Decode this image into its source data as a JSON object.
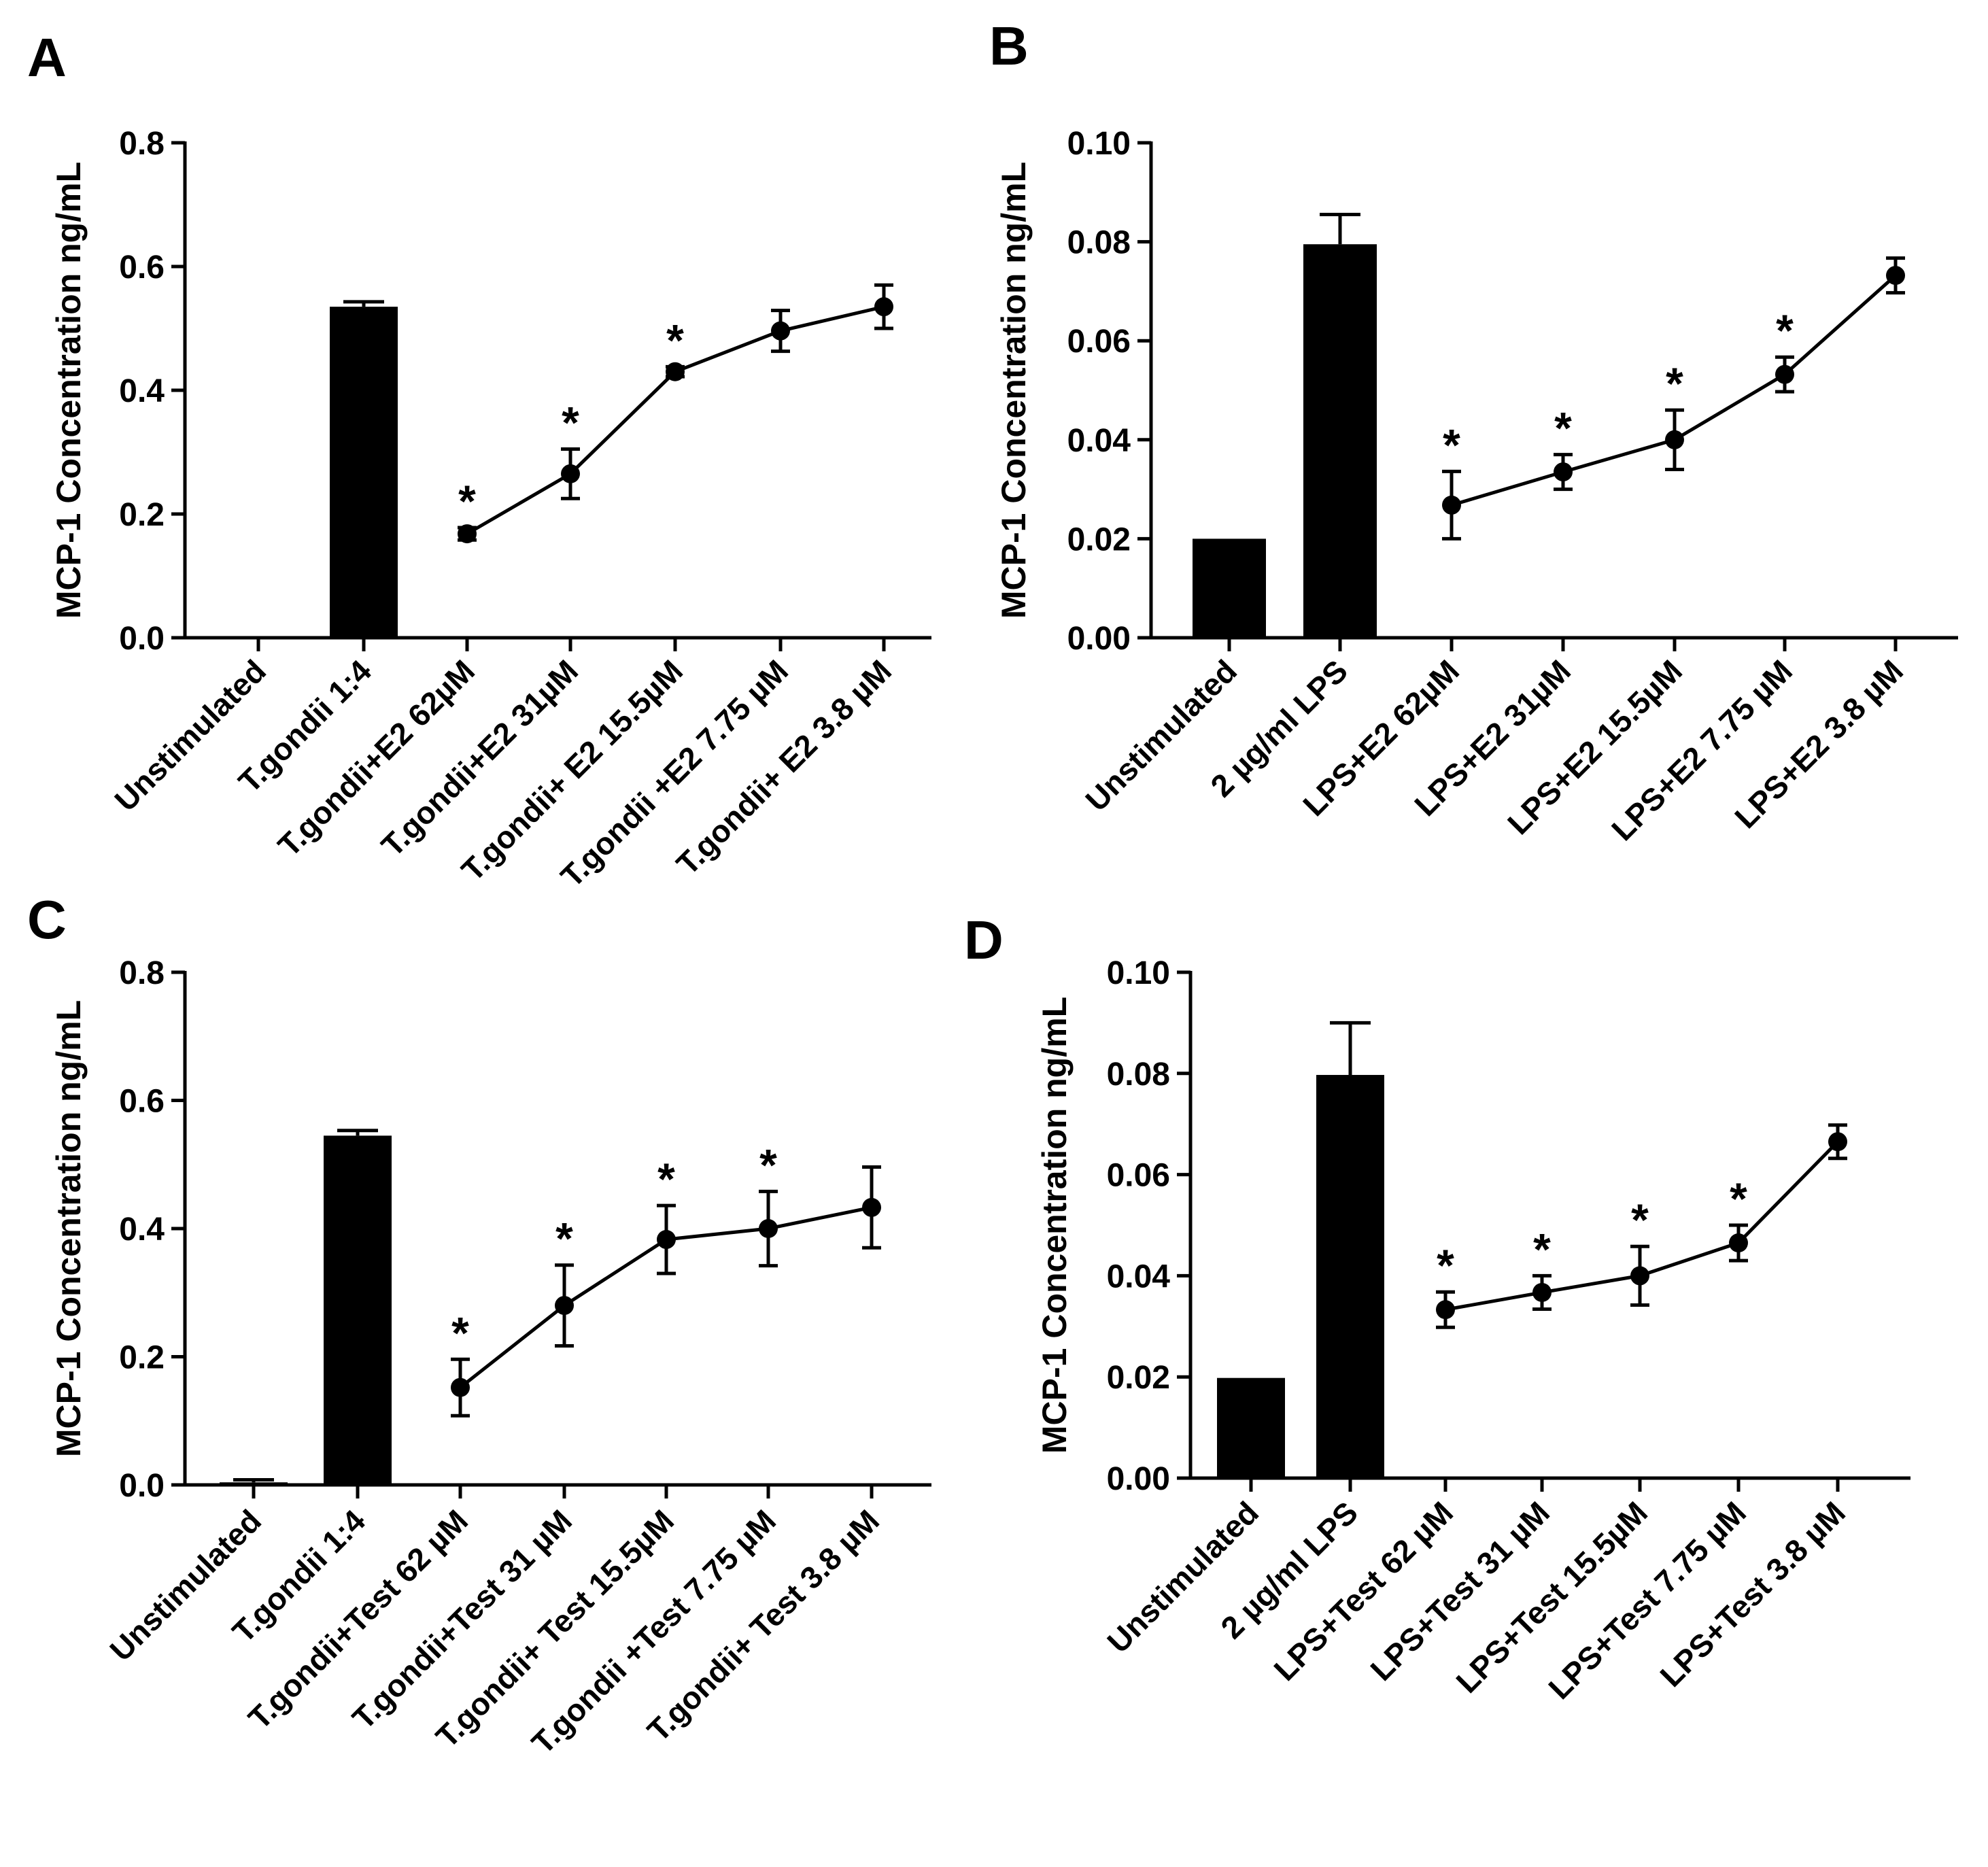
{
  "chart_data": [
    {
      "panel": "A",
      "type": "bar+line",
      "ylabel": "MCP-1 Concentration ng/mL",
      "ylim": [
        0,
        0.8
      ],
      "yticks": [
        "0.0",
        "0.2",
        "0.4",
        "0.6",
        "0.8"
      ],
      "categories": [
        "Unstimulated",
        "T.gondii 1:4",
        "T.gondii+E2 62µM",
        "T.gondii+E2 31µM",
        "T.gondii+ E2 15.5µM",
        "T.gondii +E2 7.75 µM",
        "T.gondii+ E2 3.8 µM"
      ],
      "bars": [
        {
          "index": 0,
          "value": 0,
          "err": 0
        },
        {
          "index": 1,
          "value": 0.535,
          "err": 0.008
        }
      ],
      "line": [
        {
          "index": 2,
          "value": 0.168,
          "err": 0.01,
          "sig": "*"
        },
        {
          "index": 3,
          "value": 0.265,
          "err": 0.04,
          "sig": "*"
        },
        {
          "index": 4,
          "value": 0.43,
          "err": 0.008,
          "sig": "*"
        },
        {
          "index": 5,
          "value": 0.496,
          "err": 0.033,
          "sig": ""
        },
        {
          "index": 6,
          "value": 0.535,
          "err": 0.035,
          "sig": ""
        }
      ]
    },
    {
      "panel": "B",
      "type": "bar+line",
      "ylabel": "MCP-1 Concentration ng/mL",
      "ylim": [
        0,
        0.1
      ],
      "yticks": [
        "0.00",
        "0.02",
        "0.04",
        "0.06",
        "0.08",
        "0.10"
      ],
      "categories": [
        "Unstimulated",
        "2 µg/ml LPS",
        "LPS+E2 62µM",
        "LPS+E2 31µM",
        "LPS+E2 15.5µM",
        "LPS+E2 7.75 µM",
        "LPS+E2 3.8 µM"
      ],
      "bars": [
        {
          "index": 0,
          "value": 0.02,
          "err": 0
        },
        {
          "index": 1,
          "value": 0.0795,
          "err": 0.006
        }
      ],
      "line": [
        {
          "index": 2,
          "value": 0.0268,
          "err": 0.0068,
          "sig": "*"
        },
        {
          "index": 3,
          "value": 0.0335,
          "err": 0.0035,
          "sig": "*"
        },
        {
          "index": 4,
          "value": 0.04,
          "err": 0.006,
          "sig": "*"
        },
        {
          "index": 5,
          "value": 0.0532,
          "err": 0.0035,
          "sig": "*"
        },
        {
          "index": 6,
          "value": 0.0732,
          "err": 0.0035,
          "sig": ""
        }
      ]
    },
    {
      "panel": "C",
      "type": "bar+line",
      "ylabel": "MCP-1 Concentration ng/mL",
      "ylim": [
        0,
        0.8
      ],
      "yticks": [
        "0.0",
        "0.2",
        "0.4",
        "0.6",
        "0.8"
      ],
      "categories": [
        "Unstimulated",
        "T.gondii 1:4",
        "T.gondii+Test 62 µM",
        "T.gondii+Test 31 µM",
        "T.gondii+ Test 15.5µM",
        "T.gondii +Test 7.75 µM",
        "T.gondii+ Test 3.8 µM"
      ],
      "bars": [
        {
          "index": 0,
          "value": 0.004,
          "err": 0.004
        },
        {
          "index": 1,
          "value": 0.545,
          "err": 0.008
        }
      ],
      "line": [
        {
          "index": 2,
          "value": 0.152,
          "err": 0.044,
          "sig": "*"
        },
        {
          "index": 3,
          "value": 0.28,
          "err": 0.063,
          "sig": "*"
        },
        {
          "index": 4,
          "value": 0.383,
          "err": 0.053,
          "sig": "*"
        },
        {
          "index": 5,
          "value": 0.4,
          "err": 0.058,
          "sig": "*"
        },
        {
          "index": 6,
          "value": 0.433,
          "err": 0.063,
          "sig": ""
        }
      ]
    },
    {
      "panel": "D",
      "type": "bar+line",
      "ylabel": "MCP-1 Concentration ng/mL",
      "ylim": [
        0,
        0.1
      ],
      "yticks": [
        "0.00",
        "0.02",
        "0.04",
        "0.06",
        "0.08",
        "0.10"
      ],
      "categories": [
        "Unstimulated",
        "2 µg/ml LPS",
        "LPS+Test 62 µM",
        "LPS+Test 31 µM",
        "LPS+Test 15.5µM",
        "LPS+Test 7.75 µM",
        "LPS+Test 3.8 µM"
      ],
      "bars": [
        {
          "index": 0,
          "value": 0.0198,
          "err": 0
        },
        {
          "index": 1,
          "value": 0.0797,
          "err": 0.0103
        }
      ],
      "line": [
        {
          "index": 2,
          "value": 0.0333,
          "err": 0.0035,
          "sig": "*"
        },
        {
          "index": 3,
          "value": 0.0367,
          "err": 0.0033,
          "sig": "*"
        },
        {
          "index": 4,
          "value": 0.04,
          "err": 0.0058,
          "sig": "*"
        },
        {
          "index": 5,
          "value": 0.0465,
          "err": 0.0035,
          "sig": "*"
        },
        {
          "index": 6,
          "value": 0.0665,
          "err": 0.0033,
          "sig": ""
        }
      ]
    }
  ]
}
